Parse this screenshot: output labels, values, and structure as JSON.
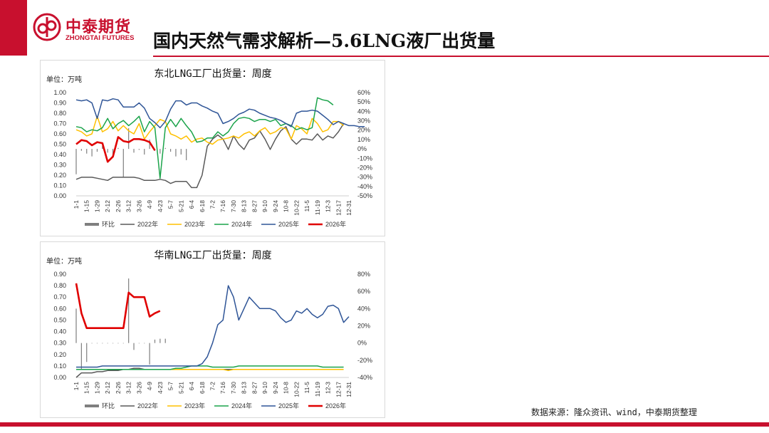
{
  "header": {
    "brand_cn": "中泰期货",
    "brand_en": "ZHONGTAI FUTURES",
    "title": "国内天然气需求解析—5.6LNG液厂出货量"
  },
  "footer": {
    "source": "数据来源：隆众资讯、wind，中泰期货整理"
  },
  "colors": {
    "brand": "#c8102e",
    "y2022": "#595959",
    "y2023": "#ffc000",
    "y2024": "#1aa34a",
    "y2025": "#2f5597",
    "y2026": "#e00000",
    "mom": "#7f7f7f"
  },
  "chart_data": [
    {
      "type": "line",
      "title": "东北LNG工厂出货量：周度",
      "unit": "单位：万吨",
      "x_ticks": [
        "1-1",
        "1-15",
        "1-29",
        "2-12",
        "2-26",
        "3-12",
        "3-26",
        "4-9",
        "4-23",
        "5-7",
        "5-21",
        "6-4",
        "6-18",
        "7-2",
        "7-16",
        "7-30",
        "8-13",
        "8-27",
        "9-10",
        "9-24",
        "10-8",
        "10-22",
        "11-5",
        "11-19",
        "12-3",
        "12-17",
        "12-31"
      ],
      "ylim": [
        0,
        1.0
      ],
      "y_ticks": [
        "0.00",
        "0.10",
        "0.20",
        "0.30",
        "0.40",
        "0.50",
        "0.60",
        "0.70",
        "0.80",
        "0.90",
        "1.00"
      ],
      "y2lim": [
        -50,
        60
      ],
      "y2_ticks": [
        "-50%",
        "-40%",
        "-30%",
        "-20%",
        "-10%",
        "0%",
        "10%",
        "20%",
        "30%",
        "40%",
        "50%",
        "60%"
      ],
      "legend": [
        "环比",
        "2022年",
        "2023年",
        "2024年",
        "2025年",
        "2026年"
      ],
      "series": [
        {
          "name": "2022年",
          "values": [
            0.16,
            0.18,
            0.18,
            0.18,
            0.17,
            0.16,
            0.15,
            0.18,
            0.18,
            0.18,
            0.18,
            0.18,
            0.17,
            0.15,
            0.15,
            0.15,
            0.16,
            0.15,
            0.12,
            0.14,
            0.14,
            0.14,
            0.08,
            0.08,
            0.2,
            0.48,
            0.55,
            0.59,
            0.55,
            0.45,
            0.58,
            0.5,
            0.45,
            0.54,
            0.56,
            0.63,
            0.55,
            0.45,
            0.55,
            0.63,
            0.67,
            0.55,
            0.5,
            0.55,
            0.55,
            0.54,
            0.6,
            0.54,
            0.58,
            0.56,
            0.62,
            0.7
          ]
        },
        {
          "name": "2023年",
          "values": [
            0.64,
            0.62,
            0.58,
            0.6,
            0.77,
            0.62,
            0.65,
            0.72,
            0.63,
            0.68,
            0.63,
            0.6,
            0.7,
            0.55,
            0.62,
            0.68,
            0.74,
            0.72,
            0.6,
            0.58,
            0.55,
            0.58,
            0.52,
            0.55,
            0.56,
            0.52,
            0.5,
            0.54,
            0.55,
            0.56,
            0.58,
            0.56,
            0.6,
            0.62,
            0.58,
            0.63,
            0.66,
            0.6,
            0.62,
            0.66,
            0.65,
            0.55,
            0.68,
            0.65,
            0.6,
            0.75,
            0.7,
            0.62,
            0.64,
            0.72,
            0.72,
            0.68
          ]
        },
        {
          "name": "2024年",
          "values": [
            0.67,
            0.66,
            0.62,
            0.64,
            0.63,
            0.66,
            0.75,
            0.65,
            0.7,
            0.73,
            0.68,
            0.72,
            0.77,
            0.62,
            0.72,
            0.66,
            0.17,
            0.66,
            0.74,
            0.67,
            0.75,
            0.68,
            0.62,
            0.52,
            0.53,
            0.56,
            0.56,
            0.62,
            0.58,
            0.62,
            0.7,
            0.75,
            0.76,
            0.75,
            0.72,
            0.74,
            0.74,
            0.72,
            0.74,
            0.68,
            0.7,
            0.68,
            0.64,
            0.66,
            0.64,
            0.66,
            0.95,
            0.93,
            0.92,
            0.88
          ]
        },
        {
          "name": "2025年",
          "values": [
            0.93,
            0.92,
            0.93,
            0.9,
            0.75,
            0.93,
            0.92,
            0.94,
            0.93,
            0.86,
            0.86,
            0.86,
            0.9,
            0.85,
            0.75,
            0.71,
            0.66,
            0.72,
            0.84,
            0.92,
            0.92,
            0.88,
            0.9,
            0.9,
            0.87,
            0.85,
            0.82,
            0.8,
            0.7,
            0.72,
            0.75,
            0.79,
            0.81,
            0.84,
            0.83,
            0.8,
            0.78,
            0.76,
            0.75,
            0.73,
            0.7,
            0.67,
            0.8,
            0.82,
            0.82,
            0.83,
            0.82,
            0.78,
            0.74,
            0.69,
            0.72,
            0.7,
            0.68,
            0.68,
            0.67,
            0.67
          ]
        },
        {
          "name": "2026年",
          "values": [
            0.5,
            0.54,
            0.53,
            0.49,
            0.52,
            0.51,
            0.33,
            0.38,
            0.57,
            0.53,
            0.52,
            0.55,
            0.55,
            0.54,
            0.52,
            0.44
          ]
        },
        {
          "name": "环比",
          "axis": "y2",
          "values": [
            -27,
            -2,
            -5,
            -8,
            -3,
            3,
            -4,
            -6,
            1,
            -30,
            22,
            -4,
            -1,
            -6,
            10,
            -2,
            -5,
            1,
            -3,
            -8,
            -6,
            -12
          ]
        }
      ]
    },
    {
      "type": "line",
      "title": "华南LNG工厂出货量：周度",
      "unit": "单位：万吨",
      "x_ticks": [
        "1-1",
        "1-15",
        "1-29",
        "2-12",
        "2-26",
        "3-12",
        "3-26",
        "4-9",
        "4-23",
        "5-7",
        "5-21",
        "6-4",
        "6-18",
        "7-2",
        "7-16",
        "7-30",
        "8-13",
        "8-27",
        "9-10",
        "9-24",
        "10-8",
        "10-22",
        "11-5",
        "11-19",
        "12-3",
        "12-17",
        "12-31"
      ],
      "ylim": [
        0,
        0.9
      ],
      "y_ticks": [
        "0.00",
        "0.10",
        "0.20",
        "0.30",
        "0.40",
        "0.50",
        "0.60",
        "0.70",
        "0.80",
        "0.90"
      ],
      "y2lim": [
        -40,
        80
      ],
      "y2_ticks": [
        "-40%",
        "-20%",
        "0%",
        "20%",
        "40%",
        "60%",
        "80%"
      ],
      "legend": [
        "环比",
        "2022年",
        "2023年",
        "2024年",
        "2025年",
        "2026年"
      ],
      "series": [
        {
          "name": "2022年",
          "values": [
            0.0,
            0.04,
            0.04,
            0.04,
            0.05,
            0.05,
            0.06,
            0.06,
            0.06,
            0.07,
            0.07,
            0.08,
            0.08,
            0.07,
            0.07,
            0.07,
            0.07,
            0.07,
            0.07,
            0.07,
            0.07,
            0.07,
            0.07,
            0.07,
            0.07,
            0.07,
            0.07,
            0.07,
            0.07,
            0.07,
            0.07,
            0.07,
            0.07,
            0.07,
            0.07,
            0.07,
            0.07,
            0.07,
            0.07,
            0.07,
            0.07,
            0.07
          ]
        },
        {
          "name": "2023年",
          "values": [
            0.07,
            0.07,
            0.07,
            0.07,
            0.07,
            0.07,
            0.07,
            0.07,
            0.07,
            0.07,
            0.07,
            0.07,
            0.07,
            0.07,
            0.07,
            0.07,
            0.07,
            0.07,
            0.07,
            0.07,
            0.07,
            0.07,
            0.07,
            0.07,
            0.07,
            0.07,
            0.07,
            0.07,
            0.07,
            0.06,
            0.07,
            0.07,
            0.07,
            0.07,
            0.07,
            0.07,
            0.07,
            0.07,
            0.07,
            0.07,
            0.07,
            0.07,
            0.07,
            0.07,
            0.07,
            0.07,
            0.07,
            0.07,
            0.07,
            0.07,
            0.07,
            0.07
          ]
        },
        {
          "name": "2024年",
          "values": [
            0.07,
            0.07,
            0.07,
            0.07,
            0.07,
            0.07,
            0.07,
            0.07,
            0.07,
            0.07,
            0.07,
            0.07,
            0.07,
            0.07,
            0.07,
            0.07,
            0.07,
            0.07,
            0.07,
            0.08,
            0.08,
            0.09,
            0.1,
            0.1,
            0.1,
            0.1,
            0.09,
            0.09,
            0.09,
            0.09,
            0.09,
            0.1,
            0.1,
            0.1,
            0.1,
            0.1,
            0.1,
            0.1,
            0.1,
            0.1,
            0.1,
            0.1,
            0.1,
            0.1,
            0.1,
            0.1,
            0.1,
            0.09,
            0.09,
            0.09,
            0.09,
            0.09
          ]
        },
        {
          "name": "2025年",
          "values": [
            0.09,
            0.09,
            0.09,
            0.09,
            0.09,
            0.1,
            0.1,
            0.1,
            0.1,
            0.1,
            0.1,
            0.1,
            0.1,
            0.1,
            0.1,
            0.1,
            0.1,
            0.1,
            0.1,
            0.1,
            0.1,
            0.1,
            0.1,
            0.1,
            0.12,
            0.18,
            0.3,
            0.46,
            0.5,
            0.8,
            0.7,
            0.5,
            0.6,
            0.7,
            0.65,
            0.6,
            0.6,
            0.6,
            0.58,
            0.52,
            0.48,
            0.5,
            0.58,
            0.56,
            0.6,
            0.55,
            0.52,
            0.55,
            0.62,
            0.63,
            0.6,
            0.48,
            0.53
          ]
        },
        {
          "name": "2026年",
          "values": [
            0.82,
            0.56,
            0.43,
            0.43,
            0.43,
            0.43,
            0.43,
            0.43,
            0.43,
            0.43,
            0.74,
            0.7,
            0.7,
            0.7,
            0.53,
            0.56,
            0.58
          ]
        },
        {
          "name": "环比",
          "axis": "y2",
          "values": [
            40,
            -30,
            -22,
            0,
            0,
            0,
            0,
            0,
            0,
            0,
            75,
            -8,
            0,
            0,
            -25,
            4,
            5,
            5
          ]
        }
      ]
    }
  ]
}
